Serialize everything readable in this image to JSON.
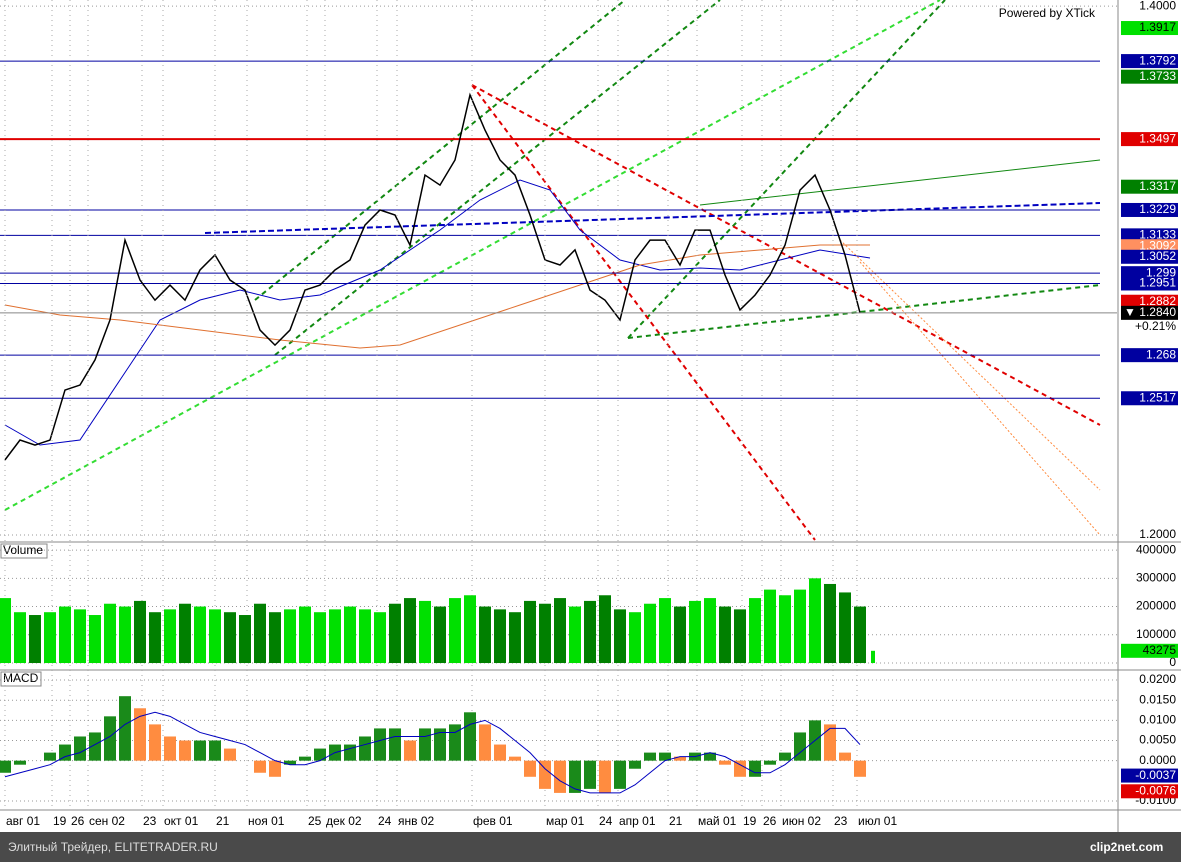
{
  "brand": "Powered by XTick",
  "footer": {
    "left": "Элитный Трейдер, ELITETRADER.RU",
    "right": "clip2net.com"
  },
  "chart_data": [
    {
      "type": "line",
      "color": "#000000",
      "ylim": [
        1.1981,
        1.4023
      ],
      "yticks": [
        {
          "value": 1.4,
          "label": "1.4000"
        },
        {
          "value": 1.2,
          "label": "1.2000"
        }
      ],
      "values": [
        1.2284,
        1.2359,
        1.234,
        1.2359,
        1.2548,
        1.2567,
        1.2662,
        1.2813,
        1.3115,
        1.2964,
        1.2888,
        1.2945,
        1.2888,
        1.3002,
        1.3059,
        1.2964,
        1.2926,
        1.2775,
        1.2718,
        1.2775,
        1.2926,
        1.2945,
        1.3002,
        1.304,
        1.3172,
        1.3229,
        1.321,
        1.3096,
        1.3361,
        1.3323,
        1.3418,
        1.3664,
        1.3531,
        1.3418,
        1.3361,
        1.321,
        1.304,
        1.3021,
        1.3078,
        1.2926,
        1.2888,
        1.2813,
        1.304,
        1.3115,
        1.3115,
        1.3021,
        1.3153,
        1.3153,
        1.2983,
        1.2851,
        1.2907,
        1.2983,
        1.3096,
        1.3304,
        1.3361,
        1.3229,
        1.3059,
        1.284
      ],
      "levels": [
        {
          "value": 1.3917,
          "bg": "#00e000",
          "fg": "#000000",
          "line": null
        },
        {
          "value": 1.3792,
          "bg": "#0000a0",
          "fg": "#ffffff",
          "line": "#0000a0"
        },
        {
          "value": 1.3733,
          "bg": "#008000",
          "fg": "#ffffff",
          "line": null
        },
        {
          "value": 1.3497,
          "bg": "#e00000",
          "fg": "#ffffff",
          "line": "#e00000"
        },
        {
          "value": 1.3317,
          "bg": "#008000",
          "fg": "#ffffff",
          "line": null
        },
        {
          "value": 1.3229,
          "bg": "#0000a0",
          "fg": "#ffffff",
          "line": "#0000a0"
        },
        {
          "value": 1.3133,
          "bg": "#0000a0",
          "fg": "#ffffff",
          "line": "#0000a0"
        },
        {
          "value": 1.3092,
          "bg": "#ff9060",
          "fg": "#ffffff",
          "line": null
        },
        {
          "value": 1.3052,
          "bg": "#0000a0",
          "fg": "#ffffff",
          "line": null
        },
        {
          "value": 1.299,
          "bg": "#0000a0",
          "fg": "#ffffff",
          "line": "#0000a0"
        },
        {
          "value": 1.2951,
          "bg": "#0000a0",
          "fg": "#ffffff",
          "line": "#0000a0"
        },
        {
          "value": 1.2882,
          "bg": "#e00000",
          "fg": "#ffffff",
          "line": null
        },
        {
          "value": 1.268,
          "bg": "#0000a0",
          "fg": "#ffffff",
          "line": "#0000a0"
        },
        {
          "value": 1.2517,
          "bg": "#0000a0",
          "fg": "#ffffff",
          "line": "#0000a0"
        }
      ],
      "last": {
        "value": 1.284,
        "label": "1.2840",
        "marker": "▼"
      },
      "change": "+0.21%",
      "x_labels": [
        "авг 01",
        "19",
        "26",
        "сен 02",
        "23",
        "окт 01",
        "21",
        "ноя 01",
        "25",
        "дек 02",
        "24",
        "янв 02",
        "фев 01",
        "мар 01",
        "24",
        "апр 01",
        "21",
        "май 01",
        "19",
        "26",
        "июн 02",
        "23",
        "июл 01"
      ]
    },
    {
      "type": "bar",
      "title": "Volume",
      "up_color": "#00e000",
      "down_color": "#008000",
      "ylim": [
        -7000,
        418000
      ],
      "yticks": [
        400000,
        300000,
        200000,
        100000,
        0
      ],
      "values": [
        230000,
        180000,
        170000,
        180000,
        200000,
        190000,
        170000,
        210000,
        200000,
        220000,
        180000,
        190000,
        210000,
        200000,
        190000,
        180000,
        170000,
        210000,
        180000,
        190000,
        200000,
        180000,
        190000,
        200000,
        190000,
        180000,
        210000,
        230000,
        220000,
        200000,
        230000,
        240000,
        200000,
        190000,
        180000,
        220000,
        210000,
        230000,
        200000,
        220000,
        240000,
        190000,
        180000,
        210000,
        230000,
        200000,
        220000,
        230000,
        200000,
        190000,
        230000,
        260000,
        240000,
        260000,
        300000,
        280000,
        250000,
        200000
      ],
      "last": 43275
    },
    {
      "type": "bar",
      "title": "MACD",
      "up_color": "#1a8a1a",
      "down_color": "#ff8c40",
      "signal_color": "#0000c0",
      "ylim": [
        -0.011,
        0.022
      ],
      "yticks": [
        {
          "value": 0.02,
          "label": "0.0200"
        },
        {
          "value": 0.015,
          "label": "0.0150"
        },
        {
          "value": 0.01,
          "label": "0.0100"
        },
        {
          "value": 0.005,
          "label": "0.0050"
        },
        {
          "value": 0,
          "label": "0.0000"
        },
        {
          "value": -0.01,
          "label": "-0.0100"
        }
      ],
      "values": [
        -0.003,
        -0.001,
        0,
        0.002,
        0.004,
        0.006,
        0.007,
        0.011,
        0.016,
        0.013,
        0.009,
        0.006,
        0.005,
        0.005,
        0.005,
        0.003,
        0,
        -0.003,
        -0.004,
        -0.001,
        0.001,
        0.003,
        0.004,
        0.004,
        0.006,
        0.008,
        0.008,
        0.005,
        0.008,
        0.008,
        0.009,
        0.012,
        0.009,
        0.004,
        0.001,
        -0.004,
        -0.007,
        -0.008,
        -0.008,
        -0.007,
        -0.008,
        -0.007,
        -0.002,
        0.002,
        0.002,
        0.001,
        0.002,
        0.002,
        -0.001,
        -0.004,
        -0.004,
        -0.001,
        0.002,
        0.007,
        0.01,
        0.009,
        0.002,
        -0.004
      ],
      "signal": [
        -0.004,
        -0.003,
        -0.002,
        -0.001,
        0.001,
        0.002,
        0.004,
        0.006,
        0.009,
        0.011,
        0.012,
        0.011,
        0.009,
        0.007,
        0.006,
        0.005,
        0.004,
        0.002,
        0,
        -0.001,
        -0.001,
        0,
        0.002,
        0.003,
        0.004,
        0.005,
        0.006,
        0.006,
        0.006,
        0.007,
        0.007,
        0.009,
        0.01,
        0.008,
        0.005,
        0.002,
        -0.002,
        -0.005,
        -0.007,
        -0.008,
        -0.008,
        -0.008,
        -0.006,
        -0.003,
        0,
        0.001,
        0.001,
        0.002,
        0.001,
        -0.001,
        -0.003,
        -0.003,
        -0.001,
        0.002,
        0.005,
        0.008,
        0.008,
        0.004
      ],
      "markers": [
        {
          "value": -0.0037,
          "bg": "#0000a0"
        },
        {
          "value": -0.0076,
          "bg": "#e00000"
        }
      ]
    }
  ]
}
